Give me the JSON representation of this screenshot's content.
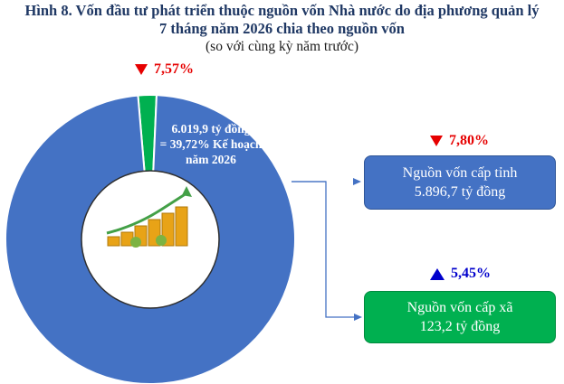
{
  "chart_data": {
    "type": "pie",
    "style": "donut",
    "title": "Hình 8. Vốn đầu tư phát triển thuộc nguồn vốn Nhà nước do địa phương quản lý",
    "title_line2": "7 tháng năm 2026 chia theo nguồn vốn",
    "subtitle": "(so với cùng kỳ năm trước)",
    "total": {
      "label_line1": "6.019,9 tỷ đồng",
      "label_line2": "= 39,72% Kế hoạch",
      "label_line3": "năm 2026",
      "change": "7,57%",
      "direction": "down"
    },
    "series": [
      {
        "name_line1": "Nguồn vốn cấp tỉnh",
        "value": 5896.7,
        "value_text": "5.896,7 tỷ đồng",
        "change": "7,80%",
        "direction": "down",
        "color": "#4472c4"
      },
      {
        "name_line1": "Nguồn vốn cấp xã",
        "value": 123.2,
        "value_text": "123,2 tỷ đồng",
        "change": "5,45%",
        "direction": "up",
        "color": "#00b050"
      }
    ],
    "colors": {
      "down": "#e60000",
      "up": "#0000cc",
      "connector": "#4472c4"
    }
  }
}
